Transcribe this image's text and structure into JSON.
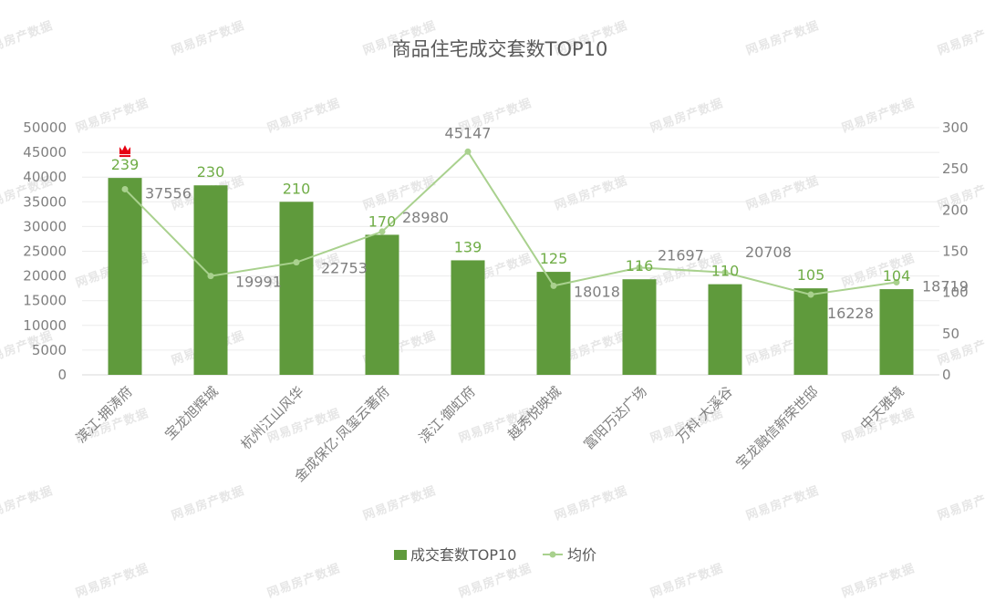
{
  "chart_data": {
    "type": "bar",
    "title": "商品住宅成交套数TOP10",
    "categories": [
      "滨江·拥涛府",
      "宝龙旭辉城",
      "杭州江山风华",
      "金成保亿·凤玺云著府",
      "滨江·御虹府",
      "越秀悦映城",
      "富阳万达广场",
      "万科·大溪谷",
      "宝龙融信新荣世邸",
      "中天雅境"
    ],
    "series": [
      {
        "name": "成交套数TOP10",
        "kind": "bar",
        "axis": "right",
        "color": "#5f9a3c",
        "values": [
          239,
          230,
          210,
          170,
          139,
          125,
          116,
          110,
          105,
          104
        ]
      },
      {
        "name": "均价",
        "kind": "line",
        "axis": "left",
        "color": "#a9d18e",
        "values": [
          37556,
          19991,
          22753,
          28980,
          45147,
          18018,
          21697,
          20708,
          16228,
          18719
        ]
      }
    ],
    "left_axis": {
      "min": 0,
      "max": 50000,
      "step": 5000,
      "ticks": [
        "0",
        "5000",
        "10000",
        "15000",
        "20000",
        "25000",
        "30000",
        "35000",
        "40000",
        "45000",
        "50000"
      ]
    },
    "right_axis": {
      "min": 0,
      "max": 300,
      "step": 50,
      "ticks": [
        "0",
        "50",
        "100",
        "150",
        "200",
        "250",
        "300"
      ]
    },
    "grid": true,
    "legend_position": "bottom",
    "annotation": {
      "category_index": 0,
      "icon": "crown-icon",
      "color": "#e60012"
    }
  },
  "watermark": {
    "text": "网易房产数据"
  }
}
